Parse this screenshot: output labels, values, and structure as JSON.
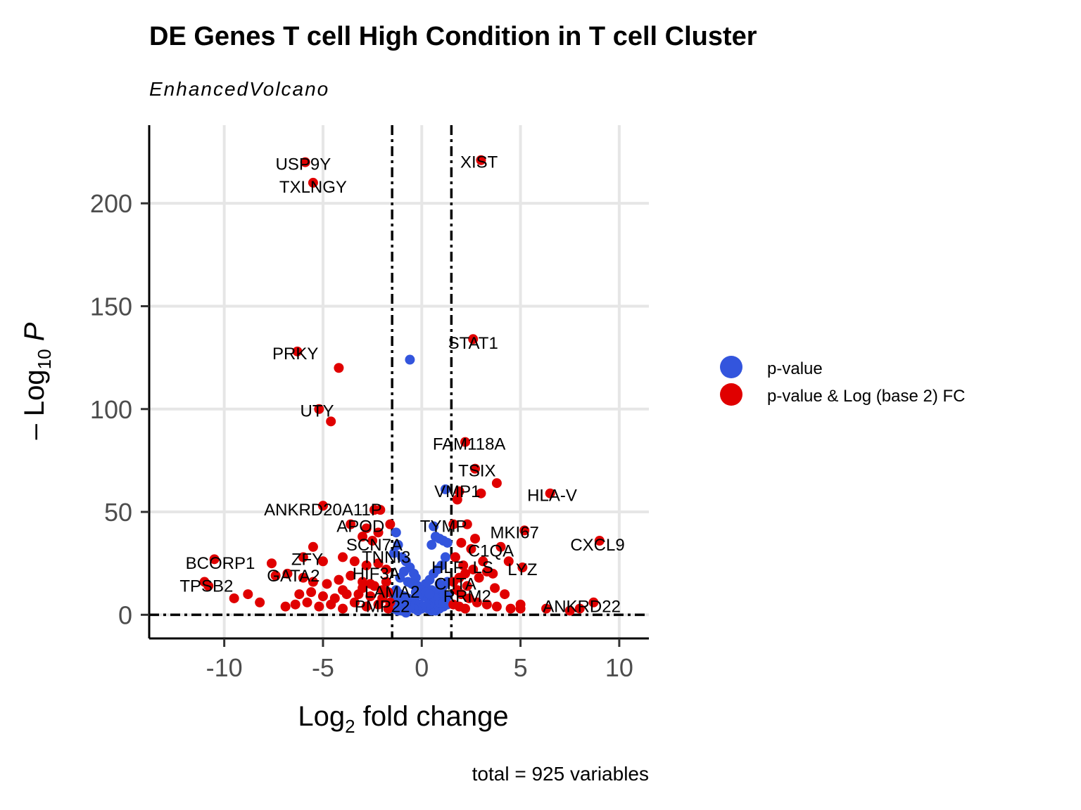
{
  "chart_data": {
    "type": "scatter",
    "title": "DE Genes T cell High Condition in T cell Cluster",
    "subtitle": "EnhancedVolcano",
    "xlabel_main": "Log",
    "xlabel_sub": "2",
    "xlabel_rest": " fold change",
    "ylabel_pre": "– Log",
    "ylabel_sub": "10",
    "ylabel_var": "P",
    "caption": "total = 925 variables",
    "xlim": [
      -13.8,
      11.5
    ],
    "ylim": [
      -11.5,
      238
    ],
    "x_ticks": [
      -10,
      -5,
      0,
      5,
      10
    ],
    "x_tick_labels": [
      "-10",
      "-5",
      "0",
      "5",
      "10"
    ],
    "y_ticks": [
      0,
      50,
      100,
      150,
      200
    ],
    "y_tick_labels": [
      "0",
      "50",
      "100",
      "150",
      "200"
    ],
    "fc_cutoff": [
      -1.5,
      1.5
    ],
    "p_cutoff": 0,
    "grid": true,
    "legend_position": "right",
    "colors": {
      "p_value": "#3355dd",
      "p_and_fc": "#e00000"
    },
    "series": [
      {
        "name": "p-value",
        "color": "#3355dd",
        "points": [
          [
            -0.6,
            124
          ],
          [
            1.2,
            61
          ],
          [
            0.6,
            43
          ],
          [
            0.7,
            38
          ],
          [
            0.9,
            37
          ],
          [
            1.1,
            36
          ],
          [
            1.3,
            35
          ],
          [
            0.5,
            34
          ],
          [
            -1.3,
            40
          ],
          [
            -1.2,
            34
          ],
          [
            -1.4,
            30
          ],
          [
            -1.0,
            28
          ],
          [
            -0.8,
            26
          ],
          [
            -0.6,
            23
          ],
          [
            -0.4,
            20
          ],
          [
            -0.3,
            18
          ],
          [
            -0.9,
            21
          ],
          [
            -1.1,
            18
          ],
          [
            -0.7,
            16
          ],
          [
            -0.5,
            15
          ],
          [
            -0.2,
            14
          ],
          [
            0.1,
            13
          ],
          [
            0.3,
            12
          ],
          [
            0.5,
            12
          ],
          [
            0.7,
            11
          ],
          [
            0.9,
            11
          ],
          [
            1.1,
            10
          ],
          [
            1.2,
            28
          ],
          [
            1.0,
            24
          ],
          [
            0.8,
            22
          ],
          [
            0.6,
            20
          ],
          [
            0.4,
            17
          ],
          [
            0.2,
            15
          ],
          [
            1.3,
            16
          ],
          [
            1.1,
            14
          ],
          [
            0.9,
            15
          ],
          [
            -1.3,
            12
          ],
          [
            -1.1,
            10
          ],
          [
            -0.9,
            9
          ],
          [
            -0.7,
            8
          ],
          [
            -0.5,
            7
          ],
          [
            -0.3,
            6
          ],
          [
            -0.1,
            5
          ],
          [
            0.1,
            4
          ],
          [
            0.3,
            3
          ],
          [
            0.5,
            2
          ],
          [
            0.7,
            2
          ],
          [
            0.9,
            3
          ],
          [
            1.1,
            4
          ],
          [
            1.3,
            5
          ],
          [
            1.2,
            7
          ],
          [
            1.0,
            8
          ],
          [
            0.8,
            7
          ],
          [
            0.6,
            6
          ],
          [
            0.4,
            5
          ],
          [
            0.2,
            4
          ],
          [
            0.0,
            3
          ],
          [
            -0.2,
            2
          ],
          [
            -0.4,
            3
          ],
          [
            -0.6,
            4
          ],
          [
            -0.8,
            5
          ],
          [
            -1.0,
            6
          ],
          [
            -1.2,
            7
          ],
          [
            -1.4,
            8
          ],
          [
            -1.4,
            3
          ],
          [
            -1.2,
            2
          ],
          [
            -1.0,
            2
          ],
          [
            -0.8,
            1
          ],
          [
            0.1,
            9
          ],
          [
            0.3,
            8
          ],
          [
            0.5,
            9
          ],
          [
            0.7,
            8
          ],
          [
            0.9,
            6
          ],
          [
            1.1,
            6
          ],
          [
            1.3,
            9
          ],
          [
            -0.1,
            10
          ],
          [
            -0.3,
            11
          ],
          [
            0.0,
            12
          ],
          [
            0.2,
            11
          ],
          [
            0.4,
            10
          ]
        ]
      },
      {
        "name": "p-value & Log (base 2) FC",
        "color": "#e00000",
        "points": [
          [
            -5.9,
            220
          ],
          [
            -5.5,
            210
          ],
          [
            3.0,
            221
          ],
          [
            2.6,
            134
          ],
          [
            -6.3,
            128
          ],
          [
            -4.2,
            120
          ],
          [
            -5.2,
            100
          ],
          [
            -4.6,
            94
          ],
          [
            2.2,
            84
          ],
          [
            2.7,
            71
          ],
          [
            3.8,
            64
          ],
          [
            3.0,
            59
          ],
          [
            1.9,
            60
          ],
          [
            1.8,
            56
          ],
          [
            6.5,
            59
          ],
          [
            -5.0,
            53
          ],
          [
            -2.4,
            51
          ],
          [
            -2.1,
            51
          ],
          [
            -1.6,
            44
          ],
          [
            -3.6,
            44
          ],
          [
            -2.8,
            42
          ],
          [
            -2.2,
            40
          ],
          [
            -3.0,
            38
          ],
          [
            -2.5,
            36
          ],
          [
            1.6,
            44
          ],
          [
            2.3,
            44
          ],
          [
            5.2,
            41
          ],
          [
            4.0,
            33
          ],
          [
            9.0,
            36
          ],
          [
            2.7,
            37
          ],
          [
            2.0,
            35
          ],
          [
            2.5,
            32
          ],
          [
            -5.5,
            33
          ],
          [
            -10.5,
            27
          ],
          [
            -7.6,
            25
          ],
          [
            -6.0,
            28
          ],
          [
            -5.0,
            26
          ],
          [
            -4.0,
            28
          ],
          [
            -3.4,
            26
          ],
          [
            -2.8,
            24
          ],
          [
            -2.2,
            25
          ],
          [
            -1.8,
            22
          ],
          [
            -7.4,
            19
          ],
          [
            -6.8,
            20
          ],
          [
            -6.0,
            18
          ],
          [
            -5.5,
            16
          ],
          [
            -4.8,
            15
          ],
          [
            -4.2,
            17
          ],
          [
            -3.6,
            19
          ],
          [
            -3.0,
            16
          ],
          [
            -2.4,
            14
          ],
          [
            -1.8,
            16
          ],
          [
            -11.0,
            16
          ],
          [
            -10.8,
            14
          ],
          [
            -9.5,
            8
          ],
          [
            -8.8,
            10
          ],
          [
            -8.2,
            6
          ],
          [
            -6.9,
            4
          ],
          [
            -6.4,
            5
          ],
          [
            -5.8,
            6
          ],
          [
            -5.2,
            4
          ],
          [
            -4.6,
            5
          ],
          [
            -4.0,
            3
          ],
          [
            -3.4,
            6
          ],
          [
            -2.8,
            4
          ],
          [
            -2.2,
            5
          ],
          [
            -1.7,
            3
          ],
          [
            1.7,
            28
          ],
          [
            2.1,
            24
          ],
          [
            2.6,
            22
          ],
          [
            3.1,
            26
          ],
          [
            3.6,
            20
          ],
          [
            4.4,
            26
          ],
          [
            5.1,
            23
          ],
          [
            3.3,
            21
          ],
          [
            2.9,
            18
          ],
          [
            2.3,
            14
          ],
          [
            1.8,
            12
          ],
          [
            2.0,
            10
          ],
          [
            2.4,
            8
          ],
          [
            2.8,
            6
          ],
          [
            3.3,
            5
          ],
          [
            3.8,
            4
          ],
          [
            4.5,
            3
          ],
          [
            5.0,
            3
          ],
          [
            6.3,
            3
          ],
          [
            7.5,
            2
          ],
          [
            8.0,
            3
          ],
          [
            8.7,
            6
          ],
          [
            4.2,
            10
          ],
          [
            3.7,
            13
          ],
          [
            -4.0,
            12
          ],
          [
            -3.2,
            10
          ],
          [
            -2.6,
            9
          ],
          [
            -2.0,
            8
          ],
          [
            -1.6,
            6
          ],
          [
            1.6,
            5
          ],
          [
            1.9,
            4
          ],
          [
            2.2,
            3
          ],
          [
            -6.2,
            10
          ],
          [
            -5.6,
            11
          ],
          [
            -5.0,
            9
          ],
          [
            -4.4,
            8
          ],
          [
            -3.8,
            10
          ],
          [
            -3.0,
            13
          ],
          [
            -2.6,
            15
          ],
          [
            -2.0,
            12
          ],
          [
            -1.7,
            11
          ],
          [
            1.6,
            16
          ],
          [
            1.9,
            18
          ],
          [
            2.2,
            20
          ],
          [
            5.0,
            5
          ]
        ]
      }
    ],
    "labels": [
      {
        "text": "USP9Y",
        "x": -6.0,
        "y": 219
      },
      {
        "text": "TXLNGY",
        "x": -5.5,
        "y": 208
      },
      {
        "text": "XIST",
        "x": 2.9,
        "y": 220
      },
      {
        "text": "STAT1",
        "x": 2.6,
        "y": 132
      },
      {
        "text": "PRKY",
        "x": -6.4,
        "y": 127
      },
      {
        "text": "UTY",
        "x": -5.3,
        "y": 99
      },
      {
        "text": "FAM118A",
        "x": 2.4,
        "y": 83
      },
      {
        "text": "TSIX",
        "x": 2.8,
        "y": 70
      },
      {
        "text": "VMP1",
        "x": 1.8,
        "y": 60
      },
      {
        "text": "HLA-V",
        "x": 6.6,
        "y": 58
      },
      {
        "text": "ANKRD20A11P",
        "x": -5.0,
        "y": 51
      },
      {
        "text": "APOD",
        "x": -3.1,
        "y": 43
      },
      {
        "text": "TYMP",
        "x": 1.1,
        "y": 43
      },
      {
        "text": "MKI67",
        "x": 4.7,
        "y": 40
      },
      {
        "text": "SCN7A",
        "x": -2.4,
        "y": 34
      },
      {
        "text": "CXCL9",
        "x": 8.9,
        "y": 34
      },
      {
        "text": "C1QA",
        "x": 3.5,
        "y": 31
      },
      {
        "text": "TNNI3",
        "x": -1.8,
        "y": 28
      },
      {
        "text": "ZFY",
        "x": -5.8,
        "y": 27
      },
      {
        "text": "BCORP1",
        "x": -10.2,
        "y": 25
      },
      {
        "text": "HLF",
        "x": 1.3,
        "y": 23
      },
      {
        "text": "LS",
        "x": 3.1,
        "y": 23
      },
      {
        "text": "LYZ",
        "x": 5.1,
        "y": 22
      },
      {
        "text": "HIF3A",
        "x": -2.3,
        "y": 20
      },
      {
        "text": "GATA2",
        "x": -6.5,
        "y": 19
      },
      {
        "text": "CIITA",
        "x": 1.7,
        "y": 15
      },
      {
        "text": "TPSB2",
        "x": -10.9,
        "y": 14
      },
      {
        "text": "LAMA2",
        "x": -1.5,
        "y": 11
      },
      {
        "text": "RRM2",
        "x": 2.3,
        "y": 9
      },
      {
        "text": "ANKRD22",
        "x": 8.1,
        "y": 4
      },
      {
        "text": "PMP22",
        "x": -2.0,
        "y": 4
      }
    ]
  }
}
